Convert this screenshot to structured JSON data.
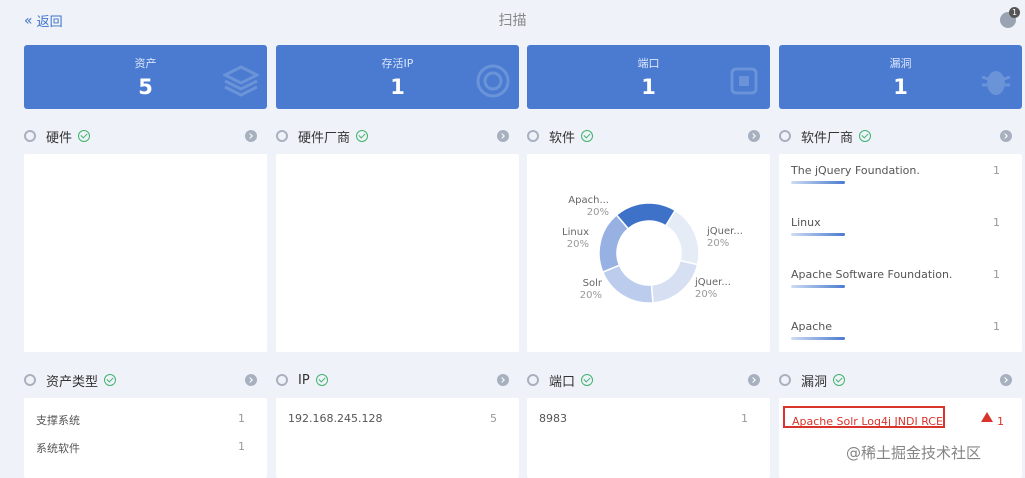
{
  "header": {
    "back_label": "返回",
    "back_chevron": "«",
    "title": "扫描",
    "notification_count": "1"
  },
  "stats": [
    {
      "label": "资产",
      "value": "5",
      "icon": "layers-icon"
    },
    {
      "label": "存活IP",
      "value": "1",
      "icon": "ip-icon"
    },
    {
      "label": "端口",
      "value": "1",
      "icon": "port-icon"
    },
    {
      "label": "漏洞",
      "value": "1",
      "icon": "bug-icon"
    }
  ],
  "sections": {
    "hardware": {
      "title": "硬件"
    },
    "hardware_vendor": {
      "title": "硬件厂商"
    },
    "software": {
      "title": "软件"
    },
    "software_vendor": {
      "title": "软件厂商",
      "items": [
        {
          "name": "The jQuery Foundation.",
          "count": "1"
        },
        {
          "name": "Linux",
          "count": "1"
        },
        {
          "name": "Apache Software Foundation.",
          "count": "1"
        },
        {
          "name": "Apache",
          "count": "1"
        }
      ]
    },
    "asset_type": {
      "title": "资产类型",
      "items": [
        {
          "name": "支撑系统",
          "count": "1"
        },
        {
          "name": "系统软件",
          "count": "1"
        }
      ]
    },
    "ip": {
      "title": "IP",
      "items": [
        {
          "name": "192.168.245.128",
          "count": "5"
        }
      ]
    },
    "port": {
      "title": "端口",
      "items": [
        {
          "name": "8983",
          "count": "1"
        }
      ]
    },
    "vuln": {
      "title": "漏洞",
      "items": [
        {
          "name": "Apache Solr Log4j JNDI RCE",
          "count": "1"
        }
      ]
    }
  },
  "chart_data": {
    "type": "pie",
    "donut": true,
    "slices": [
      {
        "label": "jQuer...",
        "pct": "20%",
        "value": 20,
        "color": "#e6ecf6"
      },
      {
        "label": "jQuer...",
        "pct": "20%",
        "value": 20,
        "color": "#d6e0f2"
      },
      {
        "label": "Solr",
        "pct": "20%",
        "value": 20,
        "color": "#bccced"
      },
      {
        "label": "Linux",
        "pct": "20%",
        "value": 20,
        "color": "#97b2e2"
      },
      {
        "label": "Apach...",
        "pct": "20%",
        "value": 20,
        "color": "#3e72c8"
      }
    ]
  },
  "colors": {
    "accent": "#4a7bd0",
    "danger": "#d9342b",
    "ok": "#3fb36b"
  },
  "watermark": "@稀土掘金技术社区"
}
